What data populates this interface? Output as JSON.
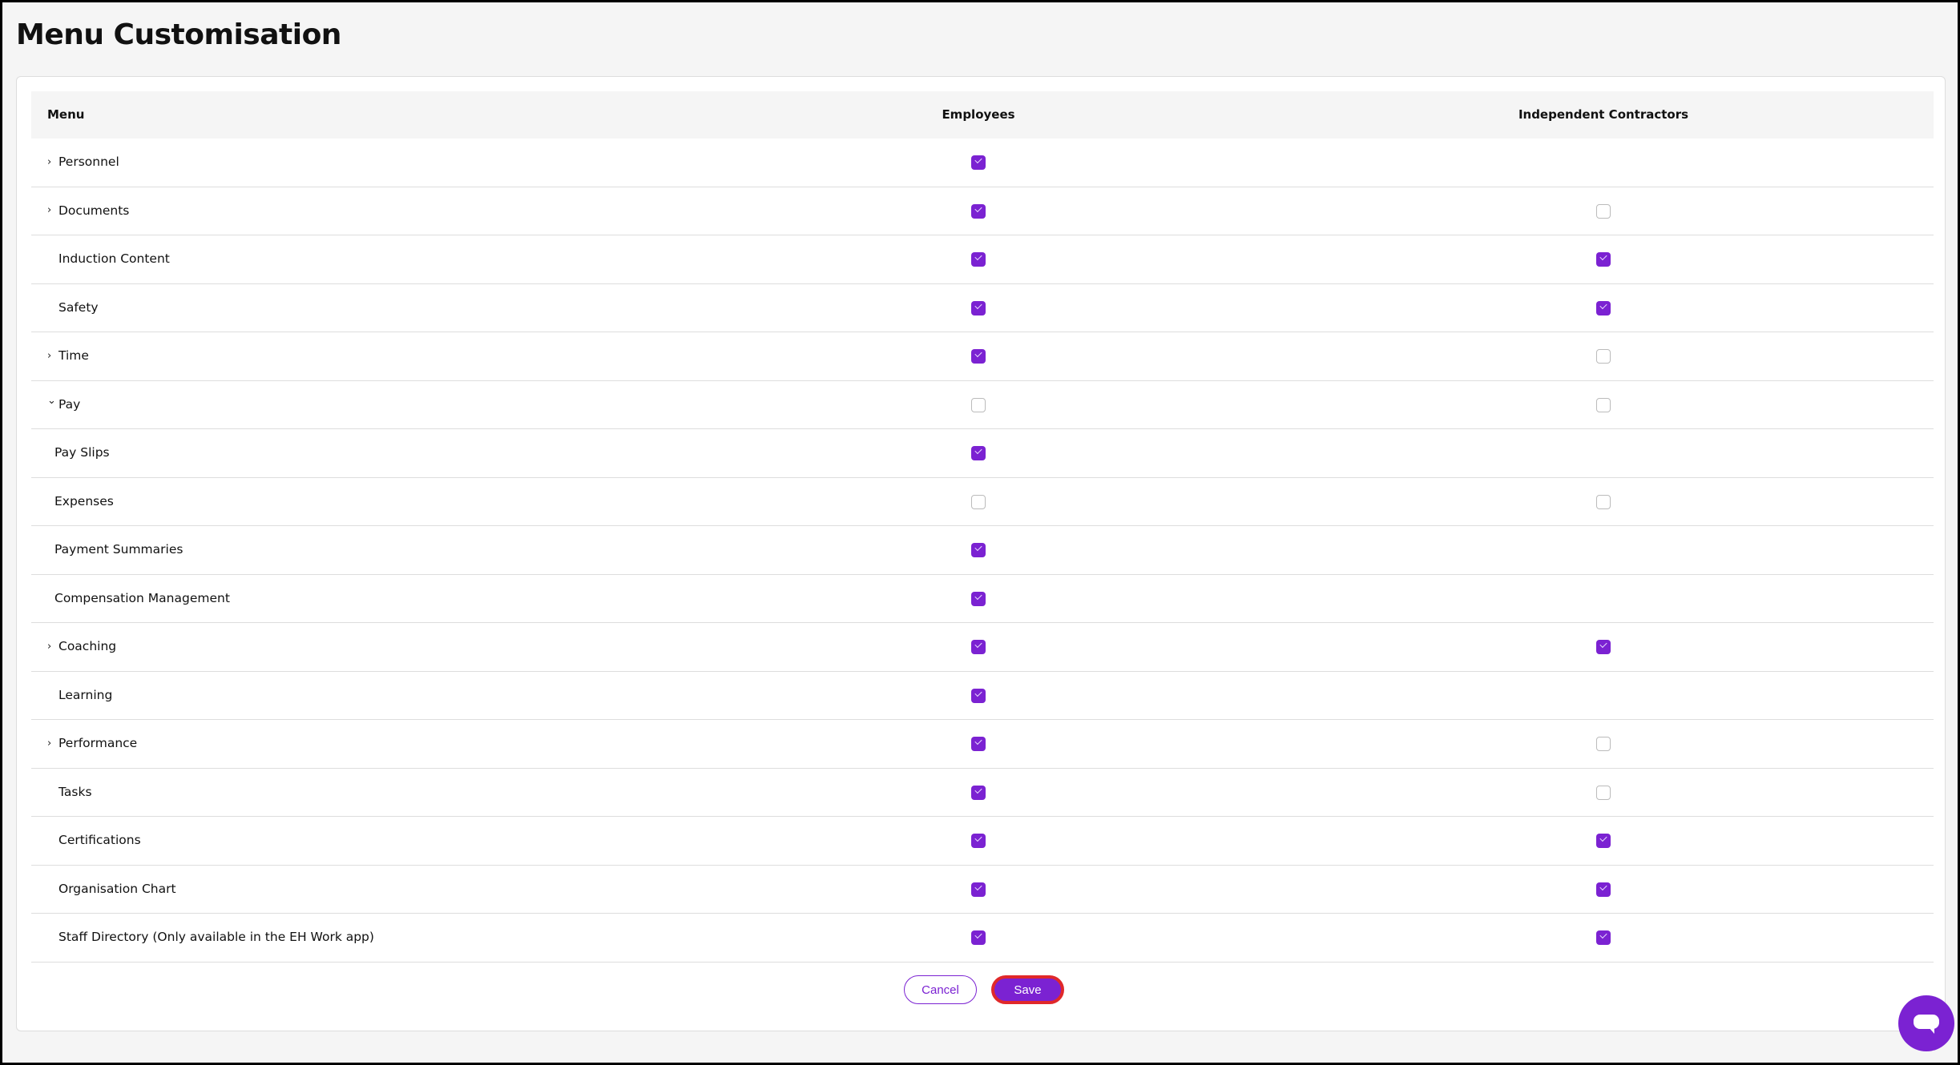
{
  "page": {
    "title": "Menu Customisation"
  },
  "colors": {
    "accent": "#7b22d2",
    "focus_ring": "#e0282a"
  },
  "table": {
    "headers": {
      "menu": "Menu",
      "employees": "Employees",
      "contractors": "Independent Contractors"
    },
    "rows": [
      {
        "label": "Personnel",
        "chevron": "right",
        "level": 0,
        "employees": true,
        "contractors": null
      },
      {
        "label": "Documents",
        "chevron": "right",
        "level": 0,
        "employees": true,
        "contractors": false
      },
      {
        "label": "Induction Content",
        "chevron": null,
        "level": 0,
        "employees": true,
        "contractors": true
      },
      {
        "label": "Safety",
        "chevron": null,
        "level": 0,
        "employees": true,
        "contractors": true
      },
      {
        "label": "Time",
        "chevron": "right",
        "level": 0,
        "employees": true,
        "contractors": false
      },
      {
        "label": "Pay",
        "chevron": "down",
        "level": 0,
        "employees": false,
        "contractors": false
      },
      {
        "label": "Pay Slips",
        "chevron": null,
        "level": 1,
        "employees": true,
        "contractors": null
      },
      {
        "label": "Expenses",
        "chevron": null,
        "level": 1,
        "employees": false,
        "contractors": false
      },
      {
        "label": "Payment Summaries",
        "chevron": null,
        "level": 1,
        "employees": true,
        "contractors": null
      },
      {
        "label": "Compensation Management",
        "chevron": null,
        "level": 1,
        "employees": true,
        "contractors": null
      },
      {
        "label": "Coaching",
        "chevron": "right",
        "level": 0,
        "employees": true,
        "contractors": true
      },
      {
        "label": "Learning",
        "chevron": null,
        "level": 0,
        "employees": true,
        "contractors": null
      },
      {
        "label": "Performance",
        "chevron": "right",
        "level": 0,
        "employees": true,
        "contractors": false
      },
      {
        "label": "Tasks",
        "chevron": null,
        "level": 0,
        "employees": true,
        "contractors": false
      },
      {
        "label": "Certifications",
        "chevron": null,
        "level": 0,
        "employees": true,
        "contractors": true
      },
      {
        "label": "Organisation Chart",
        "chevron": null,
        "level": 0,
        "employees": true,
        "contractors": true
      },
      {
        "label": "Staff Directory (Only available in the EH Work app)",
        "chevron": null,
        "level": 0,
        "employees": true,
        "contractors": true
      }
    ]
  },
  "actions": {
    "cancel_label": "Cancel",
    "save_label": "Save"
  },
  "chat": {
    "icon": "chat-bubble-icon"
  }
}
